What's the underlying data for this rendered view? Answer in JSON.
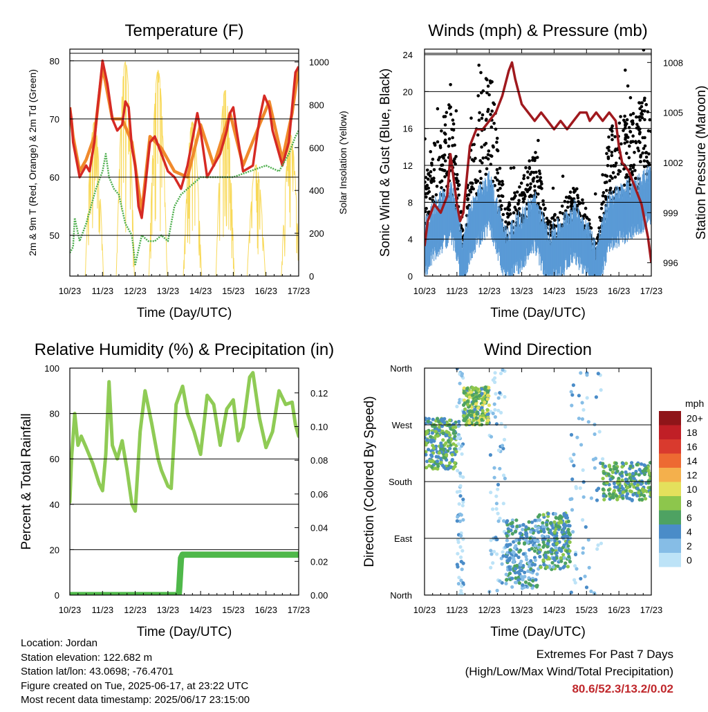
{
  "chart_data": [
    {
      "type": "line",
      "title": "Temperature (F)",
      "xlabel": "Time (Day/UTC)",
      "ylabel": "2m & 9m T (Red, Orange) & 2m Td (Green)",
      "ylabel_right": "Solar Insolation (Yellow)",
      "x_ticks": [
        "10/23",
        "11/23",
        "12/23",
        "13/23",
        "14/23",
        "15/23",
        "16/23",
        "17/23"
      ],
      "ylim": [
        43,
        82
      ],
      "y_ticks": [
        50,
        60,
        70,
        80
      ],
      "y2lim": [
        0,
        1060
      ],
      "y2_ticks": [
        0,
        200,
        400,
        600,
        800,
        1000
      ],
      "grid_y": true,
      "series": [
        {
          "name": "2m T",
          "color": "#d62a24",
          "x": [
            0,
            0.05,
            0.1,
            0.2,
            0.3,
            0.5,
            0.6,
            0.75,
            0.85,
            1.0,
            1.15,
            1.3,
            1.45,
            1.6,
            1.7,
            1.8,
            1.9,
            2.0,
            2.1,
            2.2,
            2.3,
            2.45,
            2.6,
            2.8,
            3.0,
            3.2,
            3.4,
            3.6,
            3.7,
            3.8,
            3.9,
            4.0,
            4.2,
            4.4,
            4.6,
            4.8,
            4.9,
            5.0,
            5.1,
            5.3,
            5.6,
            5.8,
            5.95,
            6.1,
            6.2,
            6.5,
            6.7,
            6.8,
            6.9,
            7.0
          ],
          "values": [
            72,
            70,
            66,
            63,
            60,
            62,
            61,
            66,
            72,
            80,
            76,
            70,
            68,
            69,
            73,
            72,
            65,
            62,
            55,
            53,
            58,
            66,
            67,
            64,
            61,
            60,
            58,
            62,
            65,
            68,
            71,
            68,
            60,
            62,
            64,
            68,
            71,
            72,
            68,
            61,
            62,
            70,
            74,
            72,
            68,
            62,
            66,
            72,
            78,
            79
          ]
        },
        {
          "name": "9m T",
          "color": "#f08a2c",
          "x": [
            0,
            0.1,
            0.3,
            0.5,
            0.75,
            1.0,
            1.3,
            1.6,
            1.9,
            2.2,
            2.45,
            2.8,
            3.2,
            3.6,
            4.0,
            4.4,
            4.9,
            5.3,
            5.8,
            6.1,
            6.5,
            6.8,
            7.0
          ],
          "values": [
            72,
            67,
            61,
            63,
            67,
            79,
            70,
            70,
            66,
            54,
            67,
            65,
            61,
            60,
            69,
            62,
            71,
            62,
            69,
            73,
            63,
            71,
            79
          ]
        },
        {
          "name": "2m Td",
          "color": "#4cae4c",
          "x": [
            0,
            0.1,
            0.15,
            0.3,
            0.5,
            0.8,
            1.0,
            1.1,
            1.2,
            1.35,
            1.5,
            1.7,
            1.9,
            2.0,
            2.2,
            2.4,
            2.6,
            2.8,
            3.0,
            3.2,
            3.4,
            3.6,
            3.8,
            4.0,
            4.3,
            4.6,
            5.0,
            5.5,
            6.0,
            6.4,
            6.7,
            6.9,
            7.0
          ],
          "values": [
            47,
            48,
            53,
            49,
            52,
            58,
            61,
            64,
            60,
            58,
            57,
            52,
            50,
            45,
            50,
            49,
            49,
            50,
            49,
            55,
            57,
            58,
            59,
            60,
            60,
            60,
            60,
            61,
            62,
            61,
            64,
            67,
            68
          ]
        },
        {
          "name": "Solar Insolation",
          "color": "#f8d95a",
          "axis": "right",
          "peaks": [
            [
              0.75,
              720
            ],
            [
              1.7,
              1000
            ],
            [
              2.7,
              960
            ],
            [
              3.75,
              720
            ],
            [
              4.75,
              870
            ],
            [
              5.7,
              520
            ],
            [
              6.75,
              660
            ]
          ]
        }
      ]
    },
    {
      "type": "scatter",
      "title": "Winds (mph) & Pressure (mb)",
      "xlabel": "Time (Day/UTC)",
      "ylabel": "Sonic Wind & Gust (Blue, Black)",
      "ylabel_right": "Station Pressure (Maroon)",
      "x_ticks": [
        "10/23",
        "11/23",
        "12/23",
        "13/23",
        "14/23",
        "15/23",
        "16/23",
        "17/23"
      ],
      "ylim": [
        0,
        24.6
      ],
      "y_ticks": [
        0,
        4,
        8,
        12,
        16,
        20,
        24
      ],
      "y2lim": [
        995.2,
        1008.8
      ],
      "y2_ticks": [
        996,
        999,
        1002,
        1005,
        1008
      ],
      "grid_y": true,
      "series": [
        {
          "name": "Sonic Wind",
          "color": "#5a9ad6",
          "profile": [
            [
              0,
              3
            ],
            [
              0.3,
              5
            ],
            [
              0.8,
              7
            ],
            [
              1.0,
              5
            ],
            [
              1.2,
              1
            ],
            [
              1.4,
              5
            ],
            [
              2.0,
              8
            ],
            [
              2.2,
              6
            ],
            [
              2.5,
              2
            ],
            [
              3.0,
              4
            ],
            [
              3.4,
              6
            ],
            [
              3.8,
              2
            ],
            [
              4.2,
              3
            ],
            [
              4.6,
              5
            ],
            [
              5.0,
              3
            ],
            [
              5.3,
              0.5
            ],
            [
              5.7,
              6
            ],
            [
              6.2,
              7
            ],
            [
              6.7,
              8
            ],
            [
              7.0,
              9
            ]
          ]
        },
        {
          "name": "Gust",
          "color": "#000000",
          "profile": [
            [
              0,
              8
            ],
            [
              0.3,
              10
            ],
            [
              0.8,
              13
            ],
            [
              1.0,
              9
            ],
            [
              1.2,
              3
            ],
            [
              1.4,
              9
            ],
            [
              1.8,
              14
            ],
            [
              2.0,
              15
            ],
            [
              2.2,
              12
            ],
            [
              2.5,
              5
            ],
            [
              3.0,
              7
            ],
            [
              3.4,
              10
            ],
            [
              3.8,
              4
            ],
            [
              4.2,
              5
            ],
            [
              4.6,
              7
            ],
            [
              5.0,
              5
            ],
            [
              5.3,
              2
            ],
            [
              5.7,
              11
            ],
            [
              6.2,
              12
            ],
            [
              6.7,
              13
            ],
            [
              7.0,
              14
            ]
          ]
        },
        {
          "name": "Station Pressure",
          "color": "#a0191e",
          "axis": "right",
          "x": [
            0,
            0.1,
            0.3,
            0.5,
            0.7,
            0.8,
            0.9,
            1.0,
            1.1,
            1.2,
            1.3,
            1.4,
            1.5,
            1.6,
            1.8,
            2.0,
            2.2,
            2.4,
            2.6,
            2.7,
            2.8,
            3.0,
            3.2,
            3.4,
            3.6,
            3.8,
            4.0,
            4.2,
            4.4,
            4.6,
            4.8,
            5.0,
            5.1,
            5.3,
            5.5,
            5.7,
            5.9,
            6.0,
            6.1,
            6.3,
            6.5,
            6.7,
            6.8,
            6.9,
            7.0
          ],
          "values": [
            997,
            998.5,
            999.5,
            999,
            1000,
            1002.5,
            1001,
            999.5,
            998.5,
            999,
            1001,
            1003,
            1003.5,
            1004,
            1004,
            1004.5,
            1005,
            1006,
            1007.5,
            1008,
            1007,
            1005.5,
            1005,
            1004.5,
            1005,
            1004.5,
            1004,
            1004.5,
            1004,
            1004.5,
            1005,
            1005,
            1004.5,
            1005,
            1004.5,
            1005,
            1004.5,
            1003,
            1002,
            1001.5,
            1000.5,
            999.5,
            998.5,
            997.5,
            996
          ]
        }
      ]
    },
    {
      "type": "line",
      "title": "Relative Humidity (%) & Precipitation (in)",
      "xlabel": "Time (Day/UTC)",
      "ylabel": "Percent & Total Rainfall",
      "x_ticks": [
        "10/23",
        "11/23",
        "12/23",
        "13/23",
        "14/23",
        "15/23",
        "16/23",
        "17/23"
      ],
      "ylim": [
        0,
        100
      ],
      "y_ticks": [
        0,
        20,
        40,
        60,
        80,
        100
      ],
      "y2lim": [
        0,
        0.1347
      ],
      "y2_ticks": [
        "0.00",
        "0.02",
        "0.04",
        "0.06",
        "0.08",
        "0.10",
        "0.12"
      ],
      "grid_y": true,
      "series": [
        {
          "name": "Relative Humidity",
          "color": "#8fcb55",
          "x": [
            0,
            0.05,
            0.15,
            0.25,
            0.35,
            0.5,
            0.7,
            0.9,
            1.0,
            1.1,
            1.2,
            1.3,
            1.45,
            1.6,
            1.75,
            1.9,
            2.0,
            2.15,
            2.3,
            2.5,
            2.7,
            2.8,
            3.0,
            3.1,
            3.25,
            3.45,
            3.6,
            3.8,
            4.0,
            4.2,
            4.4,
            4.6,
            4.8,
            5.0,
            5.15,
            5.3,
            5.5,
            5.6,
            5.8,
            6.0,
            6.2,
            6.4,
            6.6,
            6.8,
            6.9,
            7.0
          ],
          "values": [
            41,
            60,
            80,
            66,
            70,
            65,
            58,
            49,
            46,
            62,
            94,
            66,
            60,
            68,
            55,
            40,
            37,
            72,
            90,
            76,
            60,
            55,
            48,
            47,
            84,
            92,
            80,
            72,
            62,
            88,
            84,
            66,
            82,
            86,
            68,
            74,
            96,
            98,
            78,
            65,
            72,
            90,
            84,
            85,
            75,
            70
          ]
        },
        {
          "name": "Total Rainfall",
          "color": "#4fb84a",
          "axis": "right",
          "x": [
            0,
            3.33,
            3.35,
            3.38,
            3.4,
            3.45,
            7.0
          ],
          "values": [
            0,
            0,
            0.005,
            0.015,
            0.022,
            0.024,
            0.024
          ]
        }
      ]
    },
    {
      "type": "scatter",
      "title": "Wind Direction",
      "xlabel": "Time (Day/UTC)",
      "ylabel": "Direction (Colored By Speed)",
      "x_ticks": [
        "10/23",
        "11/23",
        "12/23",
        "13/23",
        "14/23",
        "15/23",
        "16/23",
        "17/23"
      ],
      "y_ticks": [
        "North",
        "East",
        "South",
        "West",
        "North"
      ],
      "ylim": [
        0,
        360
      ],
      "grid_y": true,
      "legend_title": "mph",
      "legend_labels": [
        "20+",
        "18",
        "16",
        "14",
        "12",
        "10",
        "8",
        "6",
        "4",
        "2",
        "0"
      ],
      "colors": [
        "#bde3f7",
        "#86bde6",
        "#4a8cc8",
        "#4ea262",
        "#8dc64c",
        "#e4e05c",
        "#f4b04c",
        "#ed6a32",
        "#d93a2e",
        "#c01f26",
        "#8f1519"
      ],
      "legend_placement": "right",
      "clusters": [
        {
          "x": [
            0,
            1.0
          ],
          "dir": [
            200,
            280
          ],
          "speed": 6
        },
        {
          "x": [
            1.0,
            1.2
          ],
          "dir": [
            0,
            360
          ],
          "speed": 2
        },
        {
          "x": [
            1.2,
            2.0
          ],
          "dir": [
            270,
            330
          ],
          "speed": 7
        },
        {
          "x": [
            2.0,
            2.5
          ],
          "dir": [
            0,
            360
          ],
          "speed": 1
        },
        {
          "x": [
            2.5,
            3.5
          ],
          "dir": [
            10,
            120
          ],
          "speed": 4
        },
        {
          "x": [
            3.5,
            4.5
          ],
          "dir": [
            40,
            130
          ],
          "speed": 5
        },
        {
          "x": [
            4.5,
            5.5
          ],
          "dir": [
            0,
            360
          ],
          "speed": 2
        },
        {
          "x": [
            5.5,
            7.0
          ],
          "dir": [
            150,
            210
          ],
          "speed": 6
        }
      ]
    }
  ],
  "footer": {
    "location": "Location: Jordan",
    "elevation": "Station elevation: 122.682 m",
    "latlon": "Station lat/lon: 43.0698; -76.4701",
    "created": "Figure created on Tue, 2025-06-17, at 23:22 UTC",
    "recent": "Most recent data timestamp: 2025/06/17 23:15:00",
    "extremes_title": "Extremes For Past 7 Days",
    "extremes_sub": "(High/Low/Max Wind/Total Precipitation)",
    "extremes_values": "80.6/52.3/13.2/0.02"
  }
}
